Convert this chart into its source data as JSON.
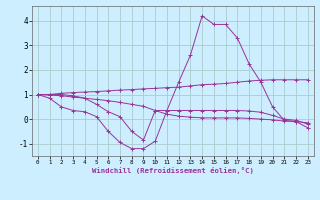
{
  "xlabel": "Windchill (Refroidissement éolien,°C)",
  "background_color": "#cceeff",
  "grid_color": "#aacccc",
  "line_color": "#993399",
  "xlim": [
    -0.5,
    23.5
  ],
  "ylim": [
    -1.5,
    4.6
  ],
  "xticks": [
    0,
    1,
    2,
    3,
    4,
    5,
    6,
    7,
    8,
    9,
    10,
    11,
    12,
    13,
    14,
    15,
    16,
    17,
    18,
    19,
    20,
    21,
    22,
    23
  ],
  "yticks": [
    -1,
    0,
    1,
    2,
    3,
    4
  ],
  "lines": [
    {
      "x": [
        0,
        1,
        2,
        3,
        4,
        5,
        6,
        7,
        8,
        9,
        10,
        11,
        12,
        13,
        14,
        15,
        16,
        17,
        18,
        19,
        20,
        21,
        22,
        23
      ],
      "y": [
        1.0,
        0.85,
        0.5,
        0.35,
        0.3,
        0.1,
        -0.5,
        -0.95,
        -1.2,
        -1.2,
        -0.9,
        0.35,
        1.5,
        2.6,
        4.2,
        3.85,
        3.85,
        3.3,
        2.25,
        1.5,
        0.5,
        -0.05,
        -0.1,
        -0.35
      ]
    },
    {
      "x": [
        0,
        1,
        2,
        3,
        4,
        5,
        6,
        7,
        8,
        9,
        10,
        11,
        12,
        13,
        14,
        15,
        16,
        17,
        18,
        19,
        20,
        21,
        22,
        23
      ],
      "y": [
        1.0,
        1.0,
        1.05,
        1.08,
        1.1,
        1.12,
        1.15,
        1.18,
        1.2,
        1.23,
        1.25,
        1.28,
        1.3,
        1.35,
        1.4,
        1.42,
        1.45,
        1.5,
        1.55,
        1.58,
        1.6,
        1.6,
        1.6,
        1.6
      ]
    },
    {
      "x": [
        0,
        1,
        2,
        3,
        4,
        5,
        6,
        7,
        8,
        9,
        10,
        11,
        12,
        13,
        14,
        15,
        16,
        17,
        18,
        19,
        20,
        21,
        22,
        23
      ],
      "y": [
        1.0,
        0.98,
        0.95,
        0.9,
        0.85,
        0.8,
        0.75,
        0.68,
        0.6,
        0.52,
        0.35,
        0.2,
        0.12,
        0.08,
        0.05,
        0.05,
        0.05,
        0.05,
        0.03,
        0.0,
        -0.03,
        -0.08,
        -0.1,
        -0.15
      ]
    },
    {
      "x": [
        0,
        1,
        2,
        3,
        4,
        5,
        6,
        7,
        8,
        9,
        10,
        11,
        12,
        13,
        14,
        15,
        16,
        17,
        18,
        19,
        20,
        21,
        22,
        23
      ],
      "y": [
        1.0,
        1.0,
        1.0,
        0.95,
        0.85,
        0.6,
        0.3,
        0.1,
        -0.5,
        -0.85,
        0.35,
        0.35,
        0.35,
        0.35,
        0.35,
        0.35,
        0.35,
        0.35,
        0.33,
        0.28,
        0.15,
        0.0,
        -0.05,
        -0.2
      ]
    }
  ]
}
